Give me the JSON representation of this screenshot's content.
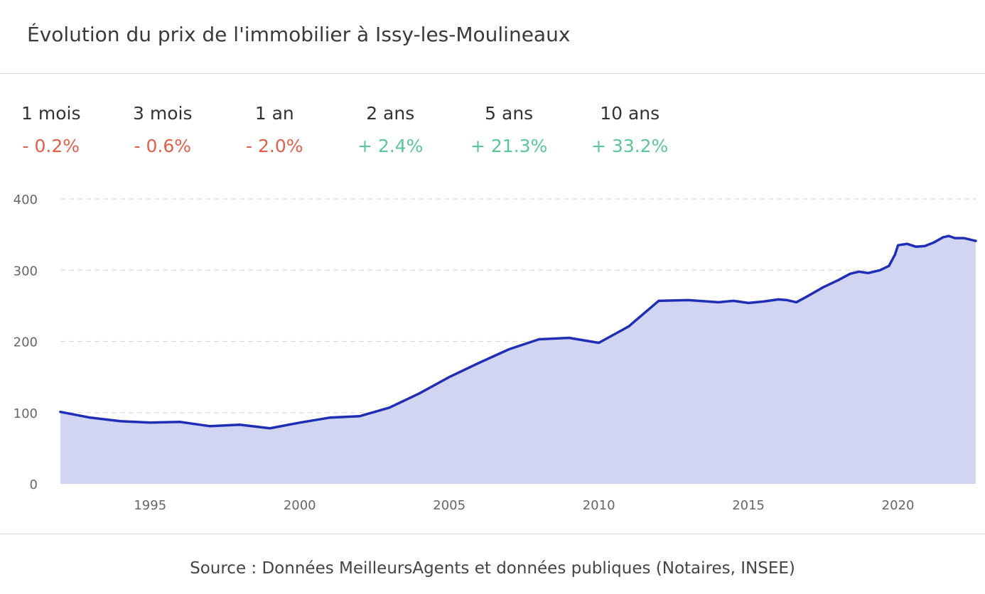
{
  "title": "Évolution du prix de l'immobilier à Issy-les-Moulineaux",
  "periods": [
    {
      "label": "1 mois",
      "value": "- 0.2%",
      "trend": "neg"
    },
    {
      "label": "3 mois",
      "value": "- 0.6%",
      "trend": "neg"
    },
    {
      "label": "1 an",
      "value": "- 2.0%",
      "trend": "neg"
    },
    {
      "label": "2 ans",
      "value": "+ 2.4%",
      "trend": "pos"
    },
    {
      "label": "5 ans",
      "value": "+ 21.3%",
      "trend": "pos"
    },
    {
      "label": "10 ans",
      "value": "+ 33.2%",
      "trend": "pos"
    }
  ],
  "source": "Source : Données MeilleursAgents et données publiques (Notaires, INSEE)",
  "colors": {
    "line": "#1e2fb5",
    "area": "#d2d5f1",
    "grid": "#d9d9d9",
    "negative": "#e0604a",
    "positive": "#5cc59a"
  },
  "chart_data": {
    "type": "area",
    "title": "",
    "xlabel": "",
    "ylabel": "",
    "xlim": [
      1992,
      2022.6
    ],
    "ylim": [
      0,
      400
    ],
    "grid": true,
    "x_ticks": [
      1995,
      2000,
      2005,
      2010,
      2015,
      2020
    ],
    "x_tick_labels": [
      "1995",
      "2000",
      "2005",
      "2010",
      "2015",
      "2020"
    ],
    "y_ticks": [
      0,
      100,
      200,
      300,
      400
    ],
    "y_tick_labels": [
      "0",
      "100",
      "200",
      "300",
      "400"
    ],
    "series": [
      {
        "points": [
          [
            1992,
            101
          ],
          [
            1993,
            93
          ],
          [
            1994,
            88
          ],
          [
            1995,
            86
          ],
          [
            1996,
            87
          ],
          [
            1997,
            81
          ],
          [
            1998,
            83
          ],
          [
            1999,
            78
          ],
          [
            2000,
            86
          ],
          [
            2001,
            93
          ],
          [
            2002,
            95
          ],
          [
            2003,
            107
          ],
          [
            2004,
            127
          ],
          [
            2005,
            150
          ],
          [
            2006,
            170
          ],
          [
            2007,
            189
          ],
          [
            2008,
            203
          ],
          [
            2009,
            205
          ],
          [
            2010,
            198
          ],
          [
            2011,
            221
          ],
          [
            2012,
            257
          ],
          [
            2013,
            258
          ],
          [
            2014,
            255
          ],
          [
            2014.5,
            257
          ],
          [
            2015,
            254
          ],
          [
            2015.5,
            256
          ],
          [
            2016,
            259
          ],
          [
            2016.3,
            258
          ],
          [
            2016.6,
            255
          ],
          [
            2017,
            264
          ],
          [
            2017.5,
            276
          ],
          [
            2018,
            286
          ],
          [
            2018.4,
            295
          ],
          [
            2018.7,
            298
          ],
          [
            2019,
            296
          ],
          [
            2019.4,
            300
          ],
          [
            2019.7,
            306
          ],
          [
            2019.9,
            322
          ],
          [
            2020,
            335
          ],
          [
            2020.3,
            337
          ],
          [
            2020.6,
            333
          ],
          [
            2020.9,
            334
          ],
          [
            2021.2,
            339
          ],
          [
            2021.5,
            346
          ],
          [
            2021.7,
            348
          ],
          [
            2021.9,
            345
          ],
          [
            2022.2,
            345
          ],
          [
            2022.6,
            341
          ]
        ]
      }
    ]
  }
}
